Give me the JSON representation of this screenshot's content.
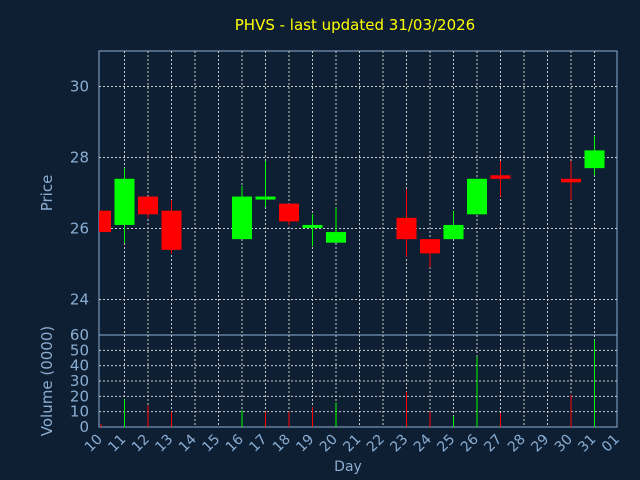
{
  "chart_data": [
    {
      "type": "candlestick",
      "title": "PHVS - last updated 31/03/2026",
      "ylabel": "Price",
      "ylim": [
        23,
        31
      ],
      "yticks": [
        "24",
        "26",
        "28",
        "30"
      ],
      "grid": true,
      "x_days": [
        "10",
        "11",
        "12",
        "13",
        "14",
        "15",
        "16",
        "17",
        "18",
        "19",
        "20",
        "21",
        "22",
        "23",
        "24",
        "25",
        "26",
        "27",
        "28",
        "29",
        "30",
        "31",
        "01"
      ],
      "candles": [
        {
          "day": "10",
          "open": 26.5,
          "high": 26.5,
          "low": 25.9,
          "close": 25.9
        },
        {
          "day": "11",
          "open": 26.1,
          "high": 27.7,
          "low": 25.6,
          "close": 27.4
        },
        {
          "day": "12",
          "open": 26.9,
          "high": 26.9,
          "low": 26.3,
          "close": 26.4
        },
        {
          "day": "13",
          "open": 26.5,
          "high": 26.8,
          "low": 25.3,
          "close": 25.4
        },
        {
          "day": "16",
          "open": 25.7,
          "high": 27.2,
          "low": 25.7,
          "close": 26.9
        },
        {
          "day": "17",
          "open": 26.9,
          "high": 27.9,
          "low": 26.6,
          "close": 26.9
        },
        {
          "day": "18",
          "open": 26.7,
          "high": 26.7,
          "low": 26.1,
          "close": 26.2
        },
        {
          "day": "19",
          "open": 26.1,
          "high": 26.4,
          "low": 25.5,
          "close": 26.1
        },
        {
          "day": "20",
          "open": 25.6,
          "high": 26.6,
          "low": 25.6,
          "close": 25.9
        },
        {
          "day": "23",
          "open": 26.3,
          "high": 27.1,
          "low": 25.2,
          "close": 25.7
        },
        {
          "day": "24",
          "open": 25.7,
          "high": 25.7,
          "low": 24.9,
          "close": 25.3
        },
        {
          "day": "25",
          "open": 25.7,
          "high": 26.5,
          "low": 25.7,
          "close": 26.1
        },
        {
          "day": "26",
          "open": 26.4,
          "high": 27.4,
          "low": 26.4,
          "close": 27.4
        },
        {
          "day": "27",
          "open": 27.5,
          "high": 27.9,
          "low": 26.9,
          "close": 27.4
        },
        {
          "day": "30",
          "open": 27.4,
          "high": 27.9,
          "low": 26.8,
          "close": 27.3
        },
        {
          "day": "31",
          "open": 27.7,
          "high": 28.6,
          "low": 27.5,
          "close": 28.2
        }
      ]
    },
    {
      "type": "bar",
      "ylabel": "Volume (0000)",
      "xlabel": "Day",
      "ylim": [
        0,
        60
      ],
      "yticks": [
        "0",
        "10",
        "20",
        "30",
        "40",
        "50",
        "60"
      ],
      "grid": true,
      "categories": [
        "10",
        "11",
        "12",
        "13",
        "16",
        "17",
        "18",
        "19",
        "20",
        "23",
        "24",
        "25",
        "26",
        "27",
        "30",
        "31"
      ],
      "values": [
        2,
        18,
        14,
        10,
        11,
        10,
        10,
        13,
        16,
        23,
        10,
        7,
        46,
        9,
        21,
        57
      ],
      "directions": [
        "down",
        "up",
        "down",
        "down",
        "up",
        "down",
        "down",
        "down",
        "up",
        "down",
        "down",
        "up",
        "up",
        "down",
        "down",
        "up"
      ]
    }
  ],
  "colors": {
    "background": "#0f1f33",
    "up": "#00ff00",
    "down": "#ff0000",
    "title": "#ffff00",
    "axis_text": "#8aaed3",
    "grid": "#c8c8c8"
  }
}
